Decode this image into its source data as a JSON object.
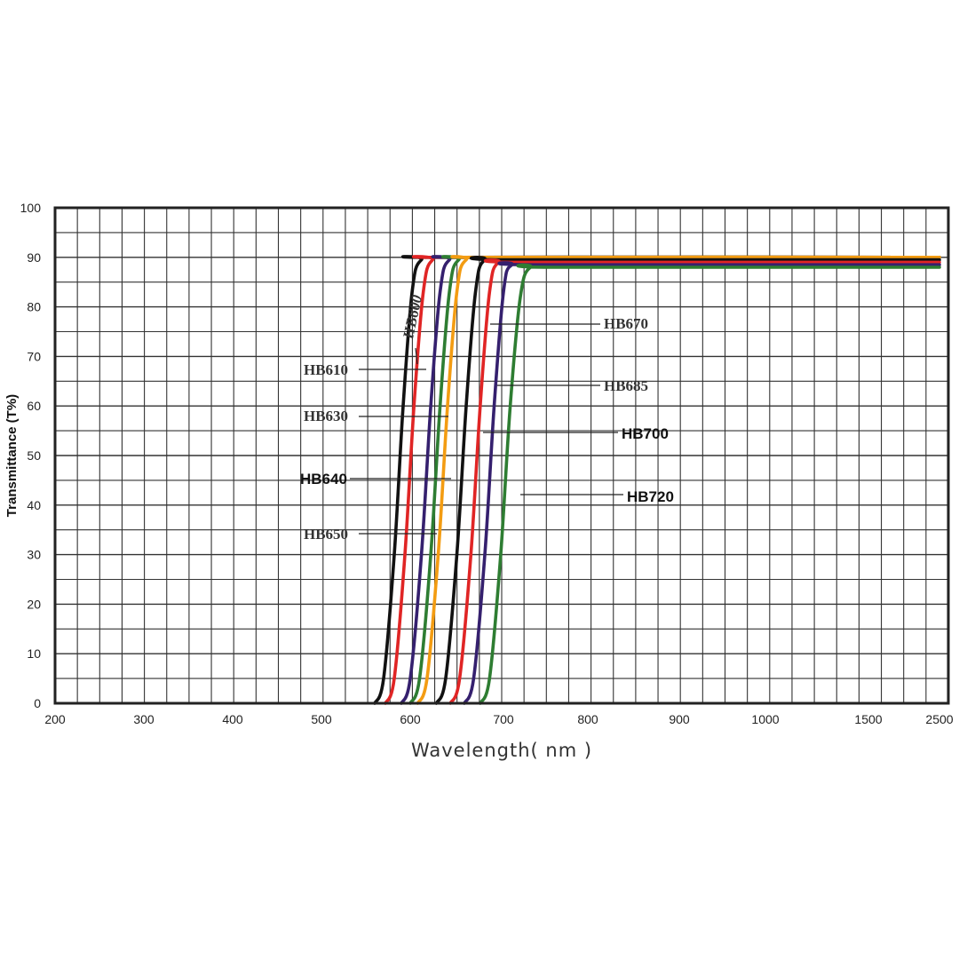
{
  "chart_data": {
    "type": "line",
    "title": "",
    "xlabel": "Wavelength( nm )",
    "ylabel": "Transmittance (T%)",
    "x_ticks": [
      "200",
      "300",
      "400",
      "500",
      "600",
      "700",
      "800",
      "900",
      "1000",
      "1500",
      "2500"
    ],
    "y_ticks": [
      "0",
      "10",
      "20",
      "30",
      "40",
      "50",
      "60",
      "70",
      "80",
      "90",
      "100"
    ],
    "ylim": [
      0,
      100
    ],
    "grid": true,
    "legend": "none",
    "series": [
      {
        "name": "HB600",
        "color": "#111111",
        "cut_on_nm": 600,
        "points": [
          [
            560,
            0
          ],
          [
            570,
            5
          ],
          [
            582,
            30
          ],
          [
            592,
            60
          ],
          [
            602,
            83
          ],
          [
            612,
            89.5
          ],
          [
            640,
            90
          ],
          [
            2500,
            90
          ]
        ]
      },
      {
        "name": "HB610",
        "color": "#e02525",
        "cut_on_nm": 610,
        "points": [
          [
            572,
            0
          ],
          [
            582,
            5
          ],
          [
            594,
            30
          ],
          [
            604,
            60
          ],
          [
            614,
            83
          ],
          [
            624,
            89.5
          ],
          [
            650,
            90
          ],
          [
            2500,
            90
          ]
        ]
      },
      {
        "name": "HB630",
        "color": "#35206e",
        "cut_on_nm": 630,
        "points": [
          [
            590,
            0
          ],
          [
            600,
            5
          ],
          [
            612,
            30
          ],
          [
            622,
            60
          ],
          [
            632,
            83
          ],
          [
            642,
            89.5
          ],
          [
            670,
            90
          ],
          [
            2500,
            90
          ]
        ]
      },
      {
        "name": "HB640",
        "color": "#2e7d32",
        "cut_on_nm": 640,
        "points": [
          [
            600,
            0
          ],
          [
            610,
            5
          ],
          [
            622,
            30
          ],
          [
            632,
            60
          ],
          [
            642,
            83
          ],
          [
            652,
            89.5
          ],
          [
            680,
            90
          ],
          [
            2500,
            90
          ]
        ]
      },
      {
        "name": "HB650",
        "color": "#f39c12",
        "cut_on_nm": 650,
        "points": [
          [
            608,
            0
          ],
          [
            618,
            5
          ],
          [
            630,
            30
          ],
          [
            640,
            60
          ],
          [
            650,
            83
          ],
          [
            660,
            89.5
          ],
          [
            690,
            90
          ],
          [
            2500,
            90
          ]
        ]
      },
      {
        "name": "HB670",
        "color": "#111111",
        "cut_on_nm": 670,
        "points": [
          [
            628,
            0
          ],
          [
            638,
            5
          ],
          [
            650,
            30
          ],
          [
            660,
            60
          ],
          [
            670,
            83
          ],
          [
            680,
            89.5
          ],
          [
            710,
            89.5
          ],
          [
            2500,
            89.5
          ]
        ]
      },
      {
        "name": "HB685",
        "color": "#e02525",
        "cut_on_nm": 685,
        "points": [
          [
            643,
            0
          ],
          [
            653,
            5
          ],
          [
            665,
            30
          ],
          [
            675,
            60
          ],
          [
            685,
            83
          ],
          [
            695,
            89
          ],
          [
            725,
            89
          ],
          [
            2500,
            89
          ]
        ]
      },
      {
        "name": "HB700",
        "color": "#35206e",
        "cut_on_nm": 700,
        "points": [
          [
            658,
            0
          ],
          [
            668,
            5
          ],
          [
            680,
            30
          ],
          [
            690,
            60
          ],
          [
            700,
            83
          ],
          [
            710,
            88.5
          ],
          [
            740,
            88.5
          ],
          [
            2500,
            88.5
          ]
        ]
      },
      {
        "name": "HB720",
        "color": "#2e7d32",
        "cut_on_nm": 720,
        "points": [
          [
            675,
            0
          ],
          [
            685,
            5
          ],
          [
            697,
            30
          ],
          [
            708,
            60
          ],
          [
            720,
            82
          ],
          [
            732,
            88
          ],
          [
            760,
            88
          ],
          [
            2500,
            88
          ]
        ]
      }
    ],
    "annotations": [
      {
        "text": "HB600",
        "target": "HB600",
        "at_y": 75
      },
      {
        "text": "HB610",
        "target": "HB610",
        "at_y": 67.5
      },
      {
        "text": "HB630",
        "target": "HB630",
        "at_y": 58.5
      },
      {
        "text": "HB640",
        "target": "HB640",
        "at_y": 45.5
      },
      {
        "text": "HB650",
        "target": "HB650",
        "at_y": 34
      },
      {
        "text": "HB670",
        "target": "HB670",
        "at_y": 76.5
      },
      {
        "text": "HB685",
        "target": "HB685",
        "at_y": 64.5
      },
      {
        "text": "HB700",
        "target": "HB700",
        "at_y": 55
      },
      {
        "text": "HB720",
        "target": "HB720",
        "at_y": 42.5
      }
    ]
  }
}
